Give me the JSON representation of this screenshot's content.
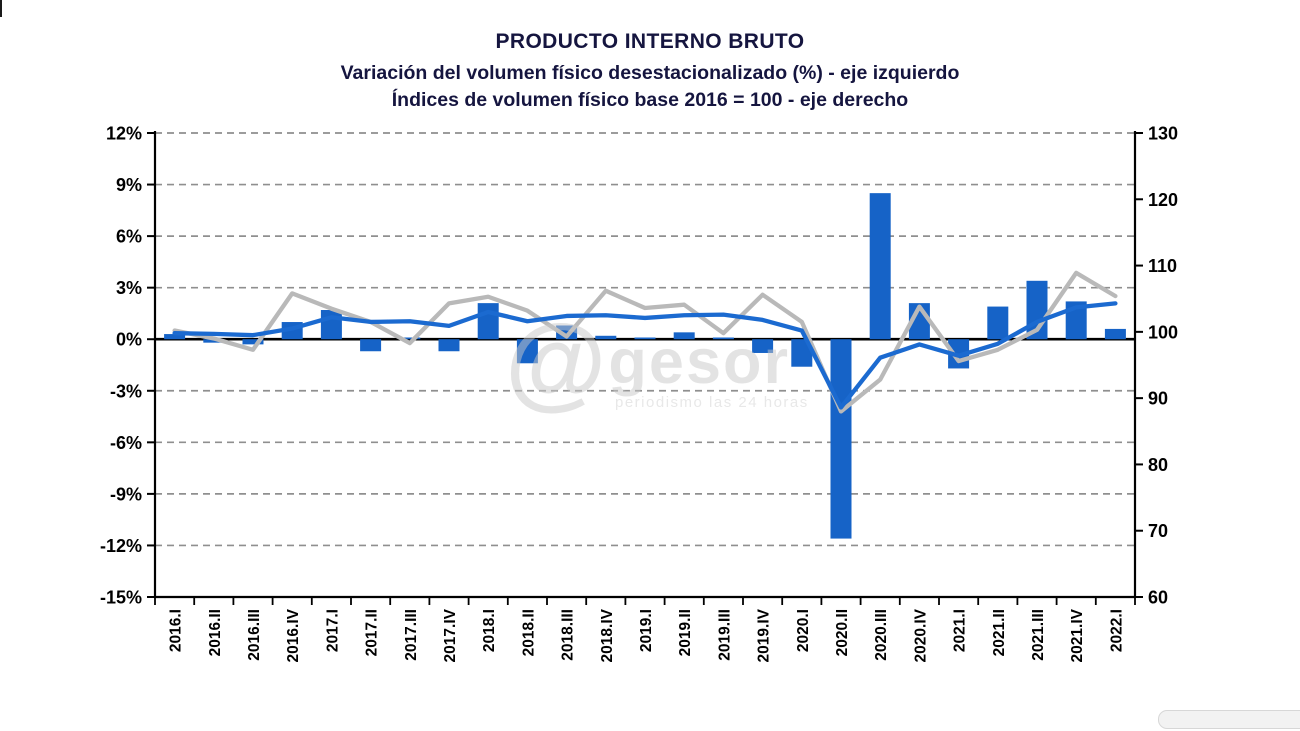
{
  "header": {
    "title": "PRODUCTO INTERNO BRUTO",
    "subtitle_line1": "Variación del volumen físico desestacionalizado (%) - eje izquierdo",
    "subtitle_line2": "Índices de volumen físico base 2016 = 100 - eje derecho"
  },
  "watermark": {
    "at_symbol": "@",
    "name": "gesor",
    "tagline": "periodismo las 24 horas"
  },
  "colors": {
    "bar_blue": "#1663c7",
    "line_blue": "#1b6ad0",
    "line_gray": "#b9b9b9",
    "grid_gray": "#8f8f8f",
    "axis_black": "#000000"
  },
  "chart_data": {
    "type": "bar",
    "title": "PRODUCTO INTERNO BRUTO",
    "subtitle_left_axis": "Variación del volumen físico desestacionalizado (%) - eje izquierdo",
    "subtitle_right_axis": "Índices de volumen físico base 2016 = 100 - eje derecho",
    "legend": "none",
    "grid": "horizontal-dashed",
    "categories": [
      "2016.I",
      "2016.II",
      "2016.III",
      "2016.IV",
      "2017.I",
      "2017.II",
      "2017.III",
      "2017.IV",
      "2018.I",
      "2018.II",
      "2018.III",
      "2018.IV",
      "2019.I",
      "2019.II",
      "2019.III",
      "2019.IV",
      "2020.I",
      "2020.II",
      "2020.III",
      "2020.IV",
      "2021.I",
      "2021.II",
      "2021.III",
      "2021.IV",
      "2022.I"
    ],
    "bar_series": {
      "label": "Variación del volumen físico desestacionalizado (%) - eje izquierdo",
      "axis": "left",
      "color": "#1663c7",
      "values": [
        0.3,
        -0.2,
        -0.3,
        1.0,
        1.7,
        -0.7,
        0.1,
        -0.7,
        2.1,
        -1.4,
        0.8,
        0.2,
        0.1,
        0.4,
        0.1,
        -0.8,
        -1.6,
        -11.6,
        8.5,
        2.1,
        -1.7,
        1.9,
        3.4,
        2.2,
        0.6
      ]
    },
    "line_series": [
      {
        "label": "Índice de volumen físico base 2016 = 100 (serie gris) - eje derecho",
        "axis": "right",
        "color": "#b9b9b9",
        "values": [
          100.2,
          99.0,
          97.3,
          105.8,
          103.5,
          101.5,
          98.3,
          104.3,
          105.3,
          103.2,
          99.3,
          106.2,
          103.6,
          104.1,
          99.8,
          105.6,
          101.5,
          88.0,
          92.8,
          103.8,
          95.6,
          97.3,
          100.3,
          108.9,
          105.4
        ]
      },
      {
        "label": "Índice de volumen físico base 2016 = 100 desestacionalizado (serie azul) - eje derecho",
        "axis": "right",
        "color": "#1b6ad0",
        "values": [
          99.8,
          99.7,
          99.5,
          100.5,
          102.2,
          101.5,
          101.6,
          100.9,
          103.0,
          101.6,
          102.4,
          102.5,
          102.1,
          102.5,
          102.6,
          101.8,
          100.2,
          88.6,
          96.1,
          98.1,
          96.4,
          98.2,
          101.5,
          103.7,
          104.3
        ]
      }
    ],
    "left_axis": {
      "min": -15,
      "max": 12,
      "step": 3,
      "tick_labels": [
        "12%",
        "9%",
        "6%",
        "3%",
        "0%",
        "-3%",
        "-6%",
        "-9%",
        "-12%",
        "-15%"
      ]
    },
    "right_axis": {
      "min": 60,
      "max": 130,
      "step": 10,
      "tick_labels": [
        "130",
        "120",
        "110",
        "100",
        "90",
        "80",
        "70",
        "60"
      ]
    }
  }
}
